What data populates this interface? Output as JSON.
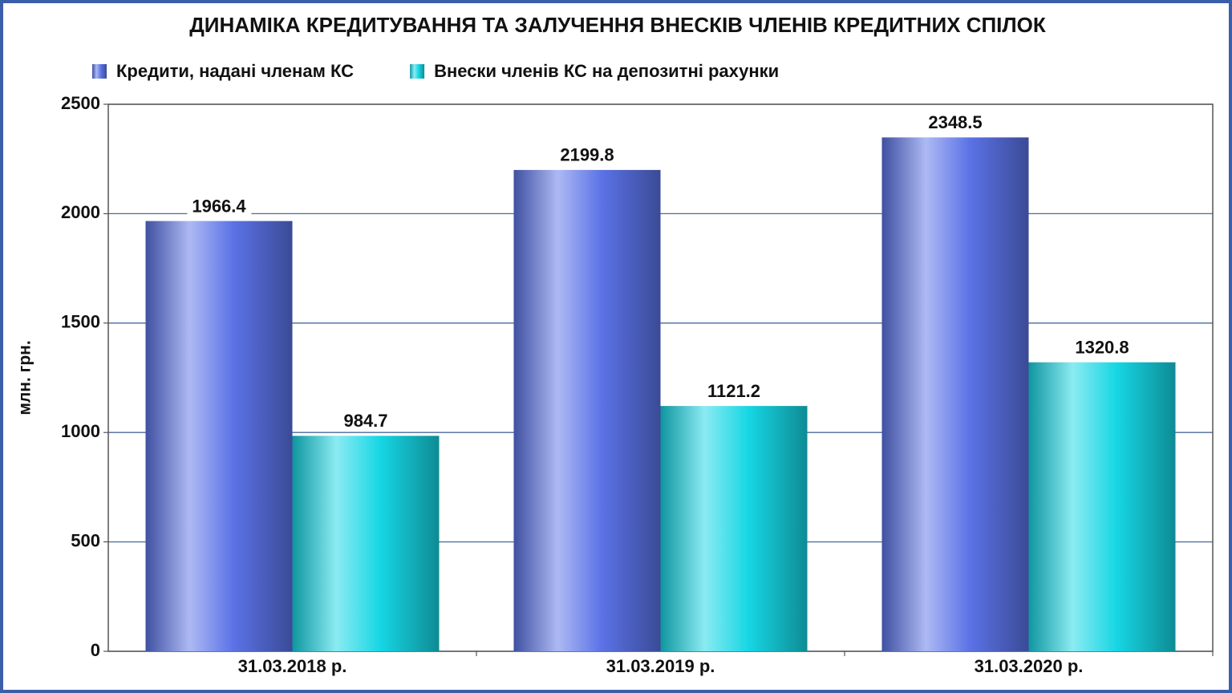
{
  "chart_data": {
    "type": "bar",
    "title": "ДИНАМІКА КРЕДИТУВАННЯ ТА ЗАЛУЧЕННЯ ВНЕСКІВ ЧЛЕНІВ КРЕДИТНИХ СПІЛОК",
    "y_label": "млн. грн.",
    "categories": [
      "31.03.2018 р.",
      "31.03.2019 р.",
      "31.03.2020 р."
    ],
    "series": [
      {
        "name": "Кредити, надані членам КС",
        "color": "#5a72e6",
        "values": [
          1966.4,
          2199.8,
          2348.5
        ]
      },
      {
        "name": "Внески членів КС на депозитні рахунки",
        "color": "#16d6e4",
        "values": [
          984.7,
          1121.2,
          1320.8
        ]
      }
    ],
    "ylim": [
      0,
      2500
    ],
    "yticks": [
      0,
      500,
      1000,
      1500,
      2000,
      2500
    ],
    "grid": true,
    "legend": "top"
  }
}
